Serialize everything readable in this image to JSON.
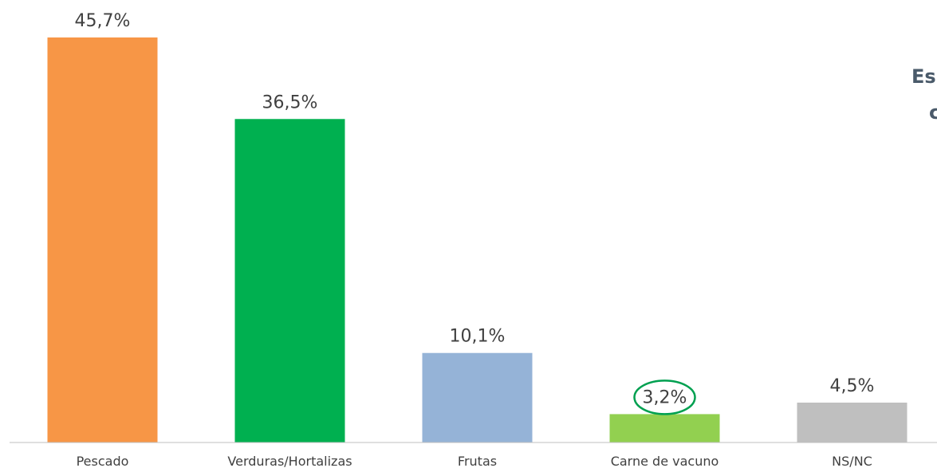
{
  "chart_data": {
    "type": "bar",
    "categories": [
      "Pescado",
      "Verduras/Hortalizas",
      "Frutas",
      "Carne de vacuno",
      "NS/NC"
    ],
    "values": [
      45.7,
      36.5,
      10.1,
      3.2,
      4.5
    ],
    "value_labels": [
      "45,7%",
      "36,5%",
      "10,1%",
      "3,2%",
      "4,5%"
    ],
    "colors": [
      "#F79646",
      "#00B050",
      "#95B3D7",
      "#92D050",
      "#BFBFBF"
    ],
    "highlighted_category": "Carne de vacuno",
    "highlight_color": "#00A050",
    "title": "",
    "xlabel": "",
    "ylabel": "",
    "ylim": [
      0,
      45.7
    ],
    "grid": false,
    "legend": "none"
  },
  "side_text": {
    "line1": "Es",
    "line2": "c"
  }
}
